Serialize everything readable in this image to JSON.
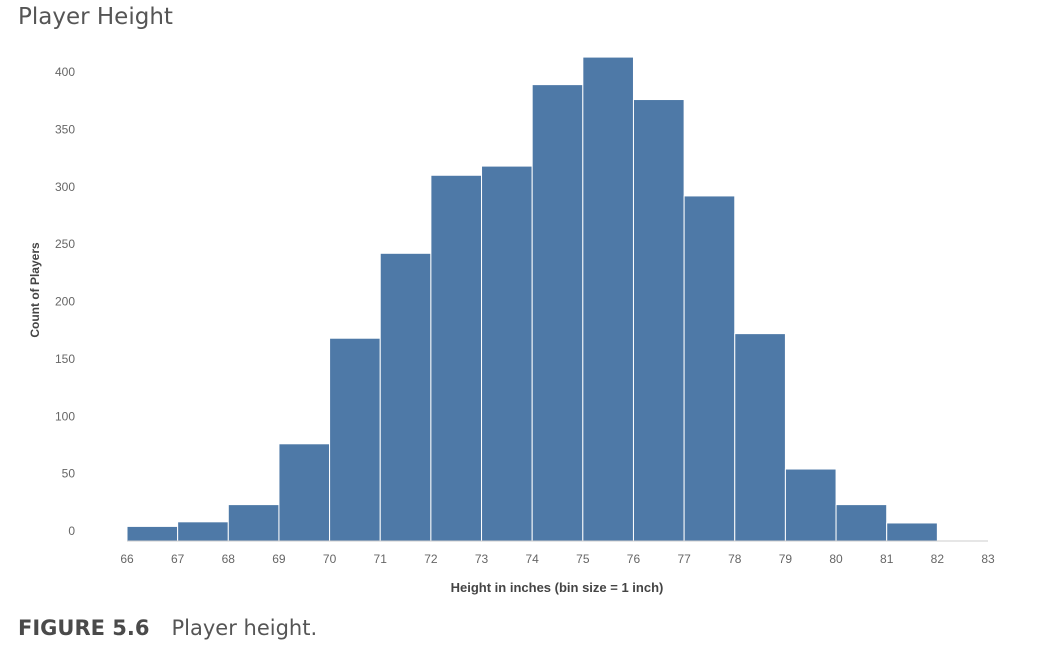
{
  "title": "Player Height",
  "caption": {
    "label": "FIGURE 5.6",
    "text": "Player height."
  },
  "chart_data": {
    "type": "bar",
    "title": "Player Height",
    "xlabel": "Height in inches (bin size = 1 inch)",
    "ylabel": "Count of Players",
    "bin_edges": [
      66,
      67,
      68,
      69,
      70,
      71,
      72,
      73,
      74,
      75,
      76,
      77,
      78,
      79,
      80,
      81,
      82,
      83
    ],
    "values": [
      4,
      8,
      23,
      76,
      168,
      242,
      310,
      318,
      389,
      413,
      376,
      292,
      172,
      54,
      23,
      7,
      0
    ],
    "x_ticks": [
      "66",
      "67",
      "68",
      "69",
      "70",
      "71",
      "72",
      "73",
      "74",
      "75",
      "76",
      "77",
      "78",
      "79",
      "80",
      "81",
      "82",
      "83"
    ],
    "y_ticks": [
      "0",
      "50",
      "100",
      "150",
      "200",
      "250",
      "300",
      "350",
      "400"
    ],
    "ylim": [
      0,
      420
    ],
    "xlim": [
      66,
      83
    ],
    "grid": false,
    "bar_color": "#4e79a7"
  }
}
